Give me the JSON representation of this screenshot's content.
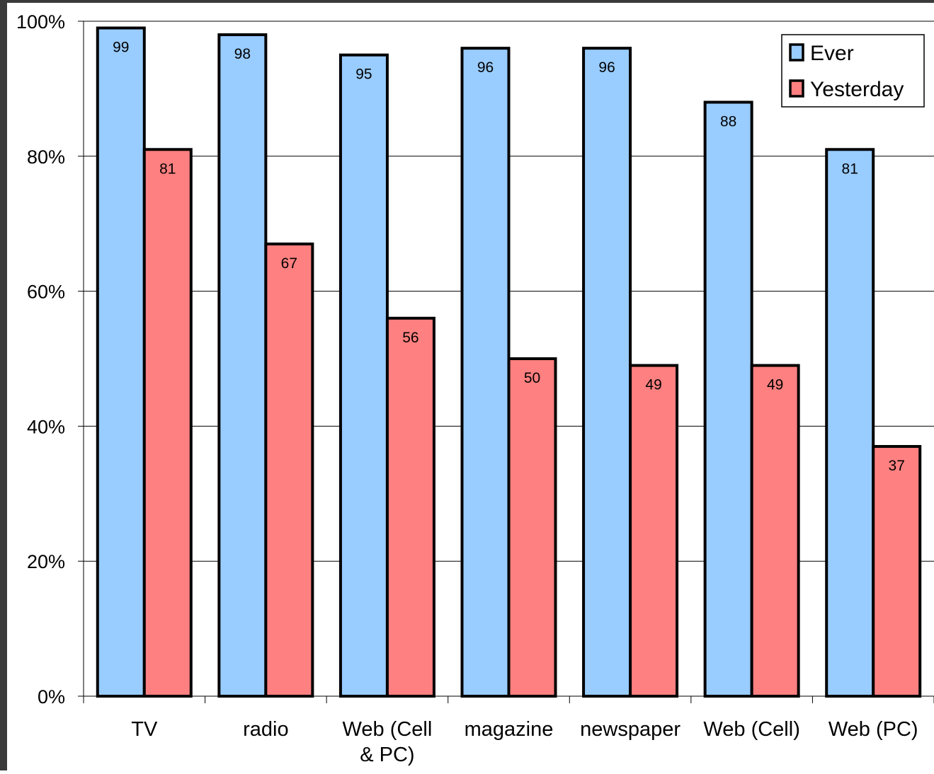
{
  "chart_data": {
    "type": "bar",
    "categories": [
      "TV",
      "radio",
      "Web (Cell & PC)",
      "magazine",
      "newspaper",
      "Web (Cell)",
      "Web (PC)"
    ],
    "category_lines": [
      [
        "TV"
      ],
      [
        "radio"
      ],
      [
        "Web (Cell",
        "& PC)"
      ],
      [
        "magazine"
      ],
      [
        "newspaper"
      ],
      [
        "Web (Cell)"
      ],
      [
        "Web (PC)"
      ]
    ],
    "series": [
      {
        "name": "Ever",
        "color": "#99ccff",
        "values": [
          99,
          98,
          95,
          96,
          96,
          88,
          81
        ]
      },
      {
        "name": "Yesterday",
        "color": "#ff8080",
        "values": [
          81,
          67,
          56,
          50,
          49,
          49,
          37
        ]
      }
    ],
    "y_ticks": [
      "0%",
      "20%",
      "40%",
      "60%",
      "80%",
      "100%"
    ],
    "ylim": [
      0,
      100
    ],
    "grid": true,
    "legend_position": "top-right",
    "title": "",
    "xlabel": "",
    "ylabel": ""
  }
}
